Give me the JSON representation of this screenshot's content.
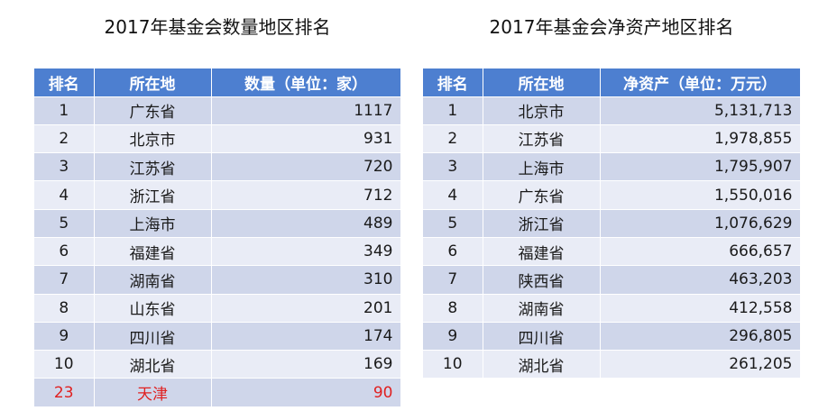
{
  "left": {
    "title": "2017年基金会数量地区排名",
    "headers": [
      "排名",
      "所在地",
      "数量（单位：家）"
    ],
    "rows": [
      {
        "rank": "1",
        "place": "广东省",
        "value": "1117"
      },
      {
        "rank": "2",
        "place": "北京市",
        "value": "931"
      },
      {
        "rank": "3",
        "place": "江苏省",
        "value": "720"
      },
      {
        "rank": "4",
        "place": "浙江省",
        "value": "712"
      },
      {
        "rank": "5",
        "place": "上海市",
        "value": "489"
      },
      {
        "rank": "6",
        "place": "福建省",
        "value": "349"
      },
      {
        "rank": "7",
        "place": "湖南省",
        "value": "310"
      },
      {
        "rank": "8",
        "place": "山东省",
        "value": "201"
      },
      {
        "rank": "9",
        "place": "四川省",
        "value": "174"
      },
      {
        "rank": "10",
        "place": "湖北省",
        "value": "169"
      },
      {
        "rank": "23",
        "place": "天津",
        "value": "90"
      }
    ]
  },
  "right": {
    "title": "2017年基金会净资产地区排名",
    "headers": [
      "排名",
      "所在地",
      "净资产（单位：万元）"
    ],
    "rows": [
      {
        "rank": "1",
        "place": "北京市",
        "value": "5,131,713"
      },
      {
        "rank": "2",
        "place": "江苏省",
        "value": "1,978,855"
      },
      {
        "rank": "3",
        "place": "上海市",
        "value": "1,795,907"
      },
      {
        "rank": "4",
        "place": "广东省",
        "value": "1,550,016"
      },
      {
        "rank": "5",
        "place": "浙江省",
        "value": "1,076,629"
      },
      {
        "rank": "6",
        "place": "福建省",
        "value": "666,657"
      },
      {
        "rank": "7",
        "place": "陕西省",
        "value": "463,203"
      },
      {
        "rank": "8",
        "place": "湖南省",
        "value": "412,558"
      },
      {
        "rank": "9",
        "place": "四川省",
        "value": "296,805"
      },
      {
        "rank": "10",
        "place": "湖北省",
        "value": "261,205"
      }
    ]
  },
  "colors": {
    "header_bg": "#4d7fd0",
    "row_dark": "#cfd6ea",
    "row_light": "#e9ecf6",
    "highlight_text": "#e02020"
  }
}
